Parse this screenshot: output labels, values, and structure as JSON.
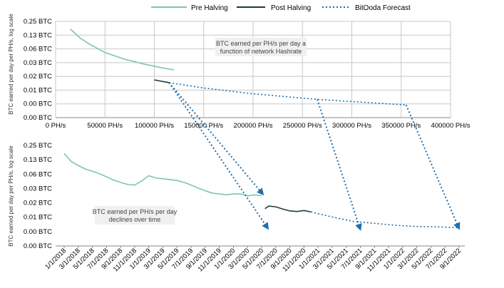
{
  "legend": [
    {
      "label": "Pre Halving",
      "color": "#7ec4b8",
      "dash": "solid"
    },
    {
      "label": "Post Halving",
      "color": "#1f3d38",
      "dash": "solid"
    },
    {
      "label": "BitOoda Forecast",
      "color": "#1f6fae",
      "dash": "dotted"
    }
  ],
  "colors": {
    "pre": "#7ec4b8",
    "post": "#1f3d38",
    "forecast": "#1f6fae",
    "grid": "#c8c8c8",
    "note_bg": "#f0f0f0"
  },
  "chart_data": [
    {
      "type": "line",
      "ylabel": "BTC earned per day per PH/s, log scale",
      "yticks": [
        "0.25 BTC",
        "0.13 BTC",
        "0.06 BTC",
        "0.03 BTC",
        "0.02 BTC",
        "0.01 BTC",
        "0.00 BTC",
        "0.00 BTC"
      ],
      "xticks": [
        "0 PH/s",
        "50000 PH/s",
        "100000 PH/s",
        "150000 PH/s",
        "200000 PH/s",
        "250000 PH/s",
        "300000 PH/s",
        "350000 PH/s",
        "400000 PH/s"
      ],
      "xlim": [
        0,
        400000
      ],
      "log_scale": true,
      "annotation": [
        "BTC earned per PH/s per day a",
        "function of network Hashrate"
      ],
      "series": [
        {
          "name": "Pre Halving",
          "x": [
            15000,
            25000,
            35000,
            50000,
            70000,
            90000,
            110000,
            120000
          ],
          "y": [
            0.17,
            0.107,
            0.078,
            0.052,
            0.0371,
            0.0289,
            0.0236,
            0.0217
          ]
        },
        {
          "name": "Post Halving",
          "x": [
            100000,
            105000,
            110000,
            115000
          ],
          "y": [
            0.0131,
            0.0125,
            0.0119,
            0.0114
          ]
        },
        {
          "name": "BitOoda Forecast",
          "x": [
            115000,
            150000,
            200000,
            265000,
            355000
          ],
          "y": [
            0.0114,
            0.0087,
            0.0065,
            0.0049,
            0.0037
          ]
        }
      ]
    },
    {
      "type": "line",
      "ylabel": "BTC earned per day per PH/s, log scale",
      "yticks": [
        "0.25 BTC",
        "0.13 BTC",
        "0.06 BTC",
        "0.03 BTC",
        "0.02 BTC",
        "0.01 BTC",
        "0.00 BTC",
        "0.00 BTC"
      ],
      "xticks": [
        "1/1/2018",
        "3/1/2018",
        "5/1/2018",
        "7/1/2018",
        "9/1/2018",
        "11/1/2018",
        "1/1/2019",
        "3/1/2019",
        "5/1/2019",
        "7/1/2019",
        "9/1/2019",
        "11/1/2019",
        "1/1/2020",
        "3/1/2020",
        "5/1/2020",
        "7/1/2020",
        "9/1/2020",
        "11/1/2020",
        "1/1/2021",
        "3/1/2021",
        "5/1/2021",
        "7/1/2021",
        "9/1/2021",
        "11/1/2021",
        "1/1/2022",
        "3/1/2022",
        "5/1/2022",
        "7/1/2022",
        "9/1/2022"
      ],
      "log_scale": true,
      "annotation": [
        "BTC earned per PH/s per day",
        "declines over time"
      ],
      "series": [
        {
          "name": "Pre Halving",
          "x": [
            "1/1/2018",
            "2/1/2018",
            "3/1/2018",
            "4/1/2018",
            "5/1/2018",
            "6/1/2018",
            "7/1/2018",
            "8/1/2018",
            "9/1/2018",
            "10/1/2018",
            "11/1/2018",
            "12/1/2018",
            "1/1/2019",
            "2/1/2019",
            "3/1/2019",
            "4/1/2019",
            "5/1/2019",
            "6/1/2019",
            "7/1/2019",
            "8/1/2019",
            "9/1/2019",
            "10/1/2019",
            "11/1/2019",
            "12/1/2019",
            "1/1/2020",
            "2/1/2020",
            "3/1/2020",
            "4/1/2020",
            "5/1/2020"
          ],
          "y": [
            0.17,
            0.115,
            0.095,
            0.08,
            0.072,
            0.064,
            0.055,
            0.047,
            0.042,
            0.038,
            0.037,
            0.045,
            0.058,
            0.052,
            0.05,
            0.048,
            0.046,
            0.042,
            0.037,
            0.032,
            0.028,
            0.025,
            0.024,
            0.023,
            0.024,
            0.024,
            0.022,
            0.023,
            0.022
          ]
        },
        {
          "name": "Post Halving",
          "x": [
            "5/15/2020",
            "6/1/2020",
            "7/1/2020",
            "8/1/2020",
            "9/1/2020",
            "10/1/2020",
            "11/1/2020",
            "12/1/2020"
          ],
          "y": [
            0.0118,
            0.0134,
            0.0129,
            0.0116,
            0.0106,
            0.0103,
            0.0108,
            0.0101
          ]
        },
        {
          "name": "BitOoda Forecast",
          "x": [
            "12/1/2020",
            "3/1/2021",
            "6/1/2021",
            "9/1/2021",
            "12/1/2021",
            "3/1/2022",
            "6/1/2022",
            "9/1/2022"
          ],
          "y": [
            0.0101,
            0.0079,
            0.0064,
            0.0058,
            0.0053,
            0.005,
            0.0049,
            0.0047
          ]
        }
      ]
    }
  ]
}
